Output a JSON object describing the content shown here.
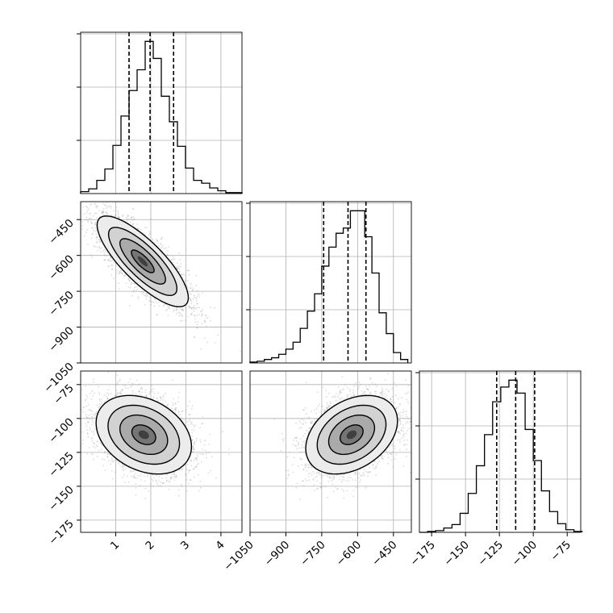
{
  "chart_data": {
    "type": "corner",
    "description_style": "corner plot of posterior samples (3 parameters)",
    "grid": true,
    "colors": {
      "line": "#000000",
      "grid": "#b0b0b0",
      "scatter": "#9a9a9a"
    },
    "params": [
      {
        "range": [
          0,
          4.6
        ],
        "ticks": [
          1,
          2,
          3,
          4
        ],
        "tick_labels": [
          "1",
          "2",
          "3",
          "4"
        ],
        "quantiles": [
          1.38,
          1.98,
          2.65
        ]
      },
      {
        "range": [
          -1050,
          -375
        ],
        "ticks": [
          -1050,
          -900,
          -750,
          -600,
          -450
        ],
        "tick_labels": [
          "−1050",
          "−900",
          "−750",
          "−600",
          "−450"
        ],
        "quantiles": [
          -742,
          -640,
          -565
        ]
      },
      {
        "range": [
          -184,
          -65
        ],
        "ticks": [
          -175,
          -150,
          -125,
          -100,
          -75
        ],
        "tick_labels": [
          "−175",
          "−150",
          "−125",
          "−100",
          "−75"
        ],
        "quantiles": [
          -127,
          -113,
          -99
        ]
      }
    ],
    "histograms": [
      {
        "edges": [
          0.0,
          0.23,
          0.46,
          0.69,
          0.92,
          1.15,
          1.38,
          1.61,
          1.84,
          2.07,
          2.3,
          2.53,
          2.76,
          2.99,
          3.22,
          3.45,
          3.68,
          3.91,
          4.14,
          4.37,
          4.6
        ],
        "counts": [
          2,
          5,
          14,
          26,
          51,
          82,
          109,
          131,
          161,
          143,
          103,
          76,
          50,
          27,
          14,
          11,
          6,
          3,
          1,
          1
        ]
      },
      {
        "edges": [
          -1050,
          -1020,
          -990,
          -960,
          -930,
          -900,
          -870,
          -840,
          -810,
          -780,
          -750,
          -720,
          -690,
          -660,
          -630,
          -600,
          -570,
          -540,
          -510,
          -480,
          -450,
          -420,
          -390
        ],
        "counts": [
          1,
          2,
          4,
          6,
          10,
          16,
          24,
          40,
          60,
          80,
          112,
          134,
          150,
          156,
          176,
          176,
          146,
          104,
          58,
          34,
          12,
          4
        ]
      },
      {
        "edges": [
          -184,
          -178,
          -172,
          -166,
          -160,
          -154,
          -148,
          -142,
          -136,
          -130,
          -124,
          -118,
          -112,
          -106,
          -100,
          -94,
          -88,
          -82,
          -76,
          -70,
          -64
        ],
        "counts": [
          0,
          1,
          2,
          5,
          9,
          22,
          45,
          77,
          113,
          151,
          168,
          176,
          161,
          119,
          83,
          48,
          24,
          10,
          3,
          1
        ]
      }
    ],
    "pairs": [
      {
        "x_param": 0,
        "y_param": 1,
        "center": [
          1.77,
          -625
        ],
        "sd": [
          0.65,
          95
        ],
        "corr": -0.8,
        "samples": 3500,
        "contour_levels": [
          0.5,
          1.0,
          1.5,
          2.0
        ]
      },
      {
        "x_param": 0,
        "y_param": 2,
        "center": [
          1.8,
          -112
        ],
        "sd": [
          0.68,
          14.5
        ],
        "corr": -0.3,
        "samples": 3500,
        "contour_levels": [
          0.5,
          1.0,
          1.5,
          2.0
        ]
      },
      {
        "x_param": 1,
        "y_param": 2,
        "center": [
          -625,
          -112
        ],
        "sd": [
          96,
          14.5
        ],
        "corr": 0.35,
        "samples": 3500,
        "contour_levels": [
          0.5,
          1.0,
          1.5,
          2.0
        ]
      }
    ]
  }
}
